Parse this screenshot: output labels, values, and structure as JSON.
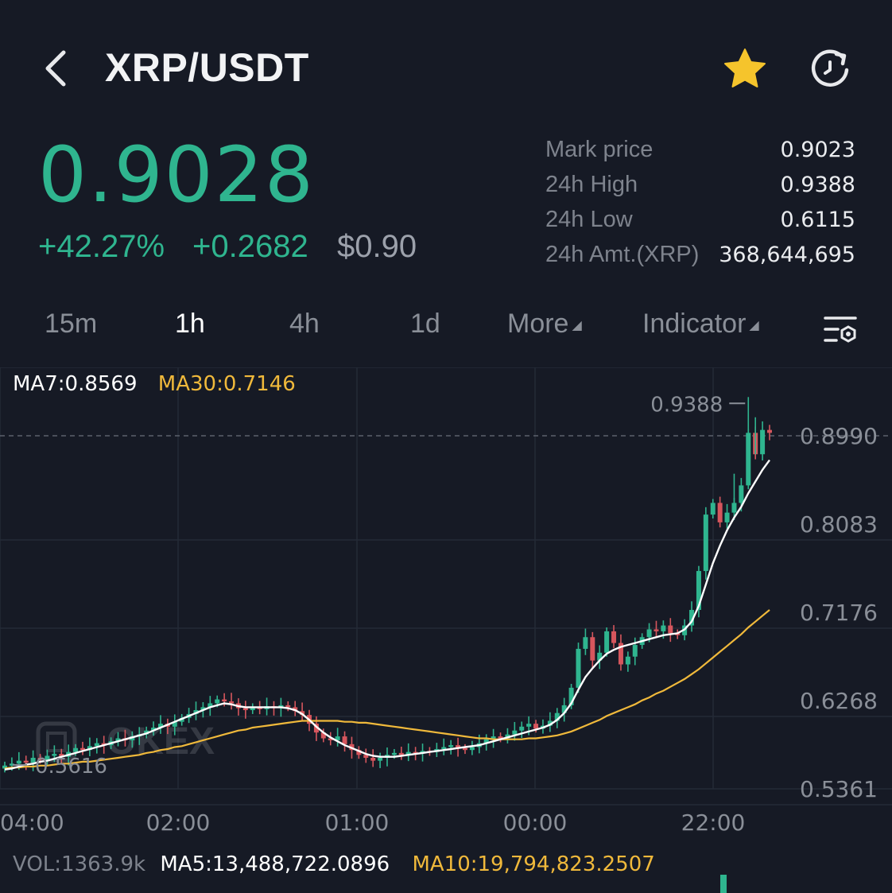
{
  "header": {
    "pair": "XRP/USDT",
    "back_icon": "chevron-left-icon",
    "favorite_icon": "star-icon",
    "refresh_icon": "refresh-icon",
    "star_color": "#f5c42c"
  },
  "ticker": {
    "last_price": "0.9028",
    "change_pct": "+42.27%",
    "change_abs": "+0.2682",
    "usd_price": "$0.90",
    "up_color": "#2fb58f"
  },
  "stats": [
    {
      "label": "Mark price",
      "value": "0.9023"
    },
    {
      "label": "24h High",
      "value": "0.9388"
    },
    {
      "label": "24h Low",
      "value": "0.6115"
    },
    {
      "label": "24h Amt.(XRP)",
      "value": "368,644,695"
    }
  ],
  "tabs": [
    {
      "label": "15m",
      "active": false
    },
    {
      "label": "1h",
      "active": true
    },
    {
      "label": "4h",
      "active": false
    },
    {
      "label": "1d",
      "active": false
    },
    {
      "label": "More",
      "active": false
    },
    {
      "label": "Indicator",
      "active": false
    }
  ],
  "indicators": {
    "ma7": "MA7:0.8569",
    "ma30": "MA30:0.7146"
  },
  "volume": {
    "vol": "VOL:1363.9k",
    "ma5": "MA5:13,488,722.0896",
    "ma10": "MA10:19,794,823.2507"
  },
  "watermark": "OKEX",
  "chart_data": {
    "type": "candlestick",
    "y_ticks": [
      "0.8990",
      "0.8083",
      "0.7176",
      "0.6268",
      "0.5361"
    ],
    "x_ticks": [
      "04:00",
      "02:00",
      "01:00",
      "00:00",
      "22:00"
    ],
    "ylim": [
      0.5361,
      0.9444
    ],
    "high_marker": "0.9388",
    "low_marker": "0.5616",
    "current_line": 0.899,
    "colors": {
      "up": "#2fb58f",
      "down": "#d6565d",
      "ma7": "#ffffff",
      "ma30": "#f0b93b"
    },
    "close_series": [
      0.56,
      0.562,
      0.565,
      0.563,
      0.568,
      0.566,
      0.57,
      0.572,
      0.569,
      0.574,
      0.578,
      0.576,
      0.58,
      0.583,
      0.581,
      0.585,
      0.588,
      0.586,
      0.59,
      0.592,
      0.596,
      0.599,
      0.603,
      0.6,
      0.605,
      0.609,
      0.613,
      0.617,
      0.62,
      0.624,
      0.628,
      0.626,
      0.624,
      0.619,
      0.617,
      0.62,
      0.618,
      0.621,
      0.619,
      0.622,
      0.62,
      0.616,
      0.612,
      0.603,
      0.594,
      0.588,
      0.586,
      0.59,
      0.582,
      0.576,
      0.571,
      0.568,
      0.565,
      0.568,
      0.571,
      0.573,
      0.571,
      0.574,
      0.573,
      0.575,
      0.574,
      0.577,
      0.579,
      0.581,
      0.578,
      0.576,
      0.579,
      0.583,
      0.587,
      0.59,
      0.588,
      0.592,
      0.596,
      0.6,
      0.603,
      0.598,
      0.601,
      0.606,
      0.614,
      0.622,
      0.64,
      0.68,
      0.692,
      0.668,
      0.676,
      0.698,
      0.686,
      0.664,
      0.672,
      0.684,
      0.692,
      0.7,
      0.698,
      0.704,
      0.696,
      0.694,
      0.704,
      0.72,
      0.76,
      0.818,
      0.83,
      0.81,
      0.82,
      0.83,
      0.848,
      0.902,
      0.88,
      0.905,
      0.902
    ],
    "ma7_series": [
      0.556,
      0.557,
      0.559,
      0.561,
      0.562,
      0.564,
      0.565,
      0.567,
      0.569,
      0.571,
      0.573,
      0.575,
      0.577,
      0.579,
      0.581,
      0.583,
      0.585,
      0.587,
      0.589,
      0.591,
      0.593,
      0.596,
      0.599,
      0.602,
      0.605,
      0.608,
      0.611,
      0.614,
      0.617,
      0.62,
      0.622,
      0.624,
      0.623,
      0.621,
      0.62,
      0.62,
      0.62,
      0.62,
      0.62,
      0.62,
      0.619,
      0.617,
      0.613,
      0.607,
      0.6,
      0.594,
      0.589,
      0.585,
      0.581,
      0.578,
      0.575,
      0.572,
      0.57,
      0.569,
      0.569,
      0.569,
      0.57,
      0.571,
      0.572,
      0.573,
      0.574,
      0.575,
      0.576,
      0.577,
      0.578,
      0.579,
      0.58,
      0.581,
      0.583,
      0.585,
      0.587,
      0.589,
      0.591,
      0.593,
      0.595,
      0.597,
      0.599,
      0.602,
      0.607,
      0.614,
      0.624,
      0.638,
      0.651,
      0.66,
      0.668,
      0.675,
      0.679,
      0.682,
      0.684,
      0.686,
      0.688,
      0.69,
      0.692,
      0.694,
      0.695,
      0.696,
      0.7,
      0.708,
      0.724,
      0.746,
      0.768,
      0.786,
      0.802,
      0.815,
      0.826,
      0.84,
      0.852,
      0.864,
      0.874
    ],
    "ma30_series": [
      0.557,
      0.558,
      0.558,
      0.559,
      0.559,
      0.56,
      0.56,
      0.561,
      0.562,
      0.562,
      0.563,
      0.564,
      0.564,
      0.565,
      0.566,
      0.567,
      0.568,
      0.569,
      0.57,
      0.571,
      0.573,
      0.574,
      0.576,
      0.577,
      0.579,
      0.58,
      0.582,
      0.584,
      0.586,
      0.588,
      0.59,
      0.592,
      0.594,
      0.596,
      0.597,
      0.599,
      0.6,
      0.601,
      0.602,
      0.603,
      0.604,
      0.605,
      0.606,
      0.606,
      0.606,
      0.606,
      0.606,
      0.606,
      0.605,
      0.605,
      0.604,
      0.604,
      0.603,
      0.602,
      0.601,
      0.6,
      0.599,
      0.598,
      0.597,
      0.596,
      0.595,
      0.594,
      0.593,
      0.592,
      0.591,
      0.59,
      0.589,
      0.588,
      0.588,
      0.587,
      0.587,
      0.587,
      0.587,
      0.587,
      0.588,
      0.588,
      0.589,
      0.59,
      0.591,
      0.593,
      0.595,
      0.598,
      0.601,
      0.604,
      0.607,
      0.611,
      0.614,
      0.617,
      0.62,
      0.623,
      0.627,
      0.63,
      0.634,
      0.637,
      0.641,
      0.645,
      0.649,
      0.654,
      0.659,
      0.665,
      0.671,
      0.677,
      0.683,
      0.689,
      0.695,
      0.702,
      0.708,
      0.714,
      0.72
    ]
  }
}
